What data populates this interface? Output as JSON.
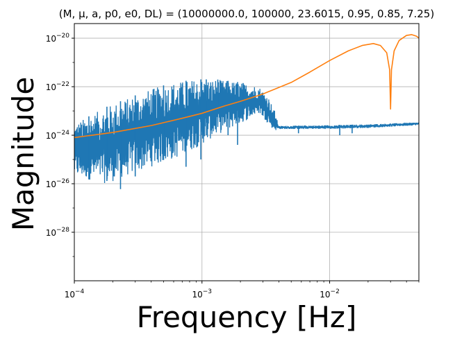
{
  "chart_data": {
    "type": "line",
    "title": "(M, μ, a, p0, e0, DL) = (10000000.0, 100000, 23.6015, 0.95, 0.85, 7.25)",
    "xlabel": "Frequency [Hz]",
    "ylabel": "Magnitude",
    "xscale": "log",
    "yscale": "log",
    "xlim": [
      0.0001,
      0.05
    ],
    "ylim": [
      1e-30,
      4e-20
    ],
    "grid": true,
    "x_ticks": [
      {
        "value": 0.0001,
        "base": "10",
        "exp": "−4"
      },
      {
        "value": 0.001,
        "base": "10",
        "exp": "−3"
      },
      {
        "value": 0.01,
        "base": "10",
        "exp": "−2"
      }
    ],
    "y_ticks": [
      {
        "value": 1e-28,
        "base": "10",
        "exp": "−28"
      },
      {
        "value": 1e-26,
        "base": "10",
        "exp": "−26"
      },
      {
        "value": 1e-24,
        "base": "10",
        "exp": "−24"
      },
      {
        "value": 1e-22,
        "base": "10",
        "exp": "−22"
      },
      {
        "value": 1e-20,
        "base": "10",
        "exp": "−20"
      }
    ],
    "series": [
      {
        "color": "#1f77b4",
        "style": "noisy-band",
        "points": [
          {
            "x": 0.0001,
            "lo": 2e-26,
            "hi": 3e-24
          },
          {
            "x": 0.00013,
            "lo": 1.5e-26,
            "hi": 6e-24
          },
          {
            "x": 0.00018,
            "lo": 1e-26,
            "hi": 1.5e-23
          },
          {
            "x": 0.00025,
            "lo": 2e-26,
            "hi": 3e-23
          },
          {
            "x": 0.0004,
            "lo": 5e-26,
            "hi": 8e-23
          },
          {
            "x": 0.0006,
            "lo": 1e-25,
            "hi": 1.5e-22
          },
          {
            "x": 0.0009,
            "lo": 3e-25,
            "hi": 2e-22
          },
          {
            "x": 0.0013,
            "lo": 1e-24,
            "hi": 2e-22
          },
          {
            "x": 0.002,
            "lo": 3e-24,
            "hi": 1.5e-22
          },
          {
            "x": 0.0028,
            "lo": 8e-24,
            "hi": 1e-22
          },
          {
            "x": 0.0033,
            "lo": 3e-24,
            "hi": 4e-23
          },
          {
            "x": 0.0037,
            "lo": 1.5e-24,
            "hi": 1e-23
          },
          {
            "x": 0.004,
            "lo": 1.8e-24,
            "hi": 2.4e-24
          },
          {
            "x": 0.01,
            "lo": 1.8e-24,
            "hi": 2.6e-24
          },
          {
            "x": 0.02,
            "lo": 2e-24,
            "hi": 2.8e-24
          },
          {
            "x": 0.05,
            "lo": 2.6e-24,
            "hi": 3.4e-24
          }
        ],
        "spikes": [
          {
            "x": 0.00013,
            "y": 1.5e-26
          },
          {
            "x": 0.00018,
            "y": 1.3e-26
          },
          {
            "x": 0.00023,
            "y": 6e-27
          },
          {
            "x": 0.0003,
            "y": 2e-26
          },
          {
            "x": 0.0005,
            "y": 1e-24
          },
          {
            "x": 0.00075,
            "y": 5e-26
          },
          {
            "x": 0.00098,
            "y": 1e-25
          },
          {
            "x": 0.00108,
            "y": 1e-24
          },
          {
            "x": 0.00133,
            "y": 1.2e-23
          },
          {
            "x": 0.0016,
            "y": 1e-24
          },
          {
            "x": 0.0019,
            "y": 4e-25
          },
          {
            "x": 0.0021,
            "y": 4e-24
          },
          {
            "x": 0.0037,
            "y": 3.5e-24
          },
          {
            "x": 0.0057,
            "y": 1.2e-24
          },
          {
            "x": 0.012,
            "y": 1e-24
          },
          {
            "x": 0.015,
            "y": 1.2e-24
          }
        ]
      },
      {
        "color": "#ff7f0e",
        "style": "smooth",
        "points": [
          {
            "x": 0.0001,
            "y": 8e-25
          },
          {
            "x": 0.0002,
            "y": 1.3e-24
          },
          {
            "x": 0.0004,
            "y": 2.5e-24
          },
          {
            "x": 0.0007,
            "y": 5e-24
          },
          {
            "x": 0.001,
            "y": 8e-24
          },
          {
            "x": 0.0015,
            "y": 1.6e-23
          },
          {
            "x": 0.002,
            "y": 2.5e-23
          },
          {
            "x": 0.003,
            "y": 5e-23
          },
          {
            "x": 0.005,
            "y": 1.5e-22
          },
          {
            "x": 0.007,
            "y": 4e-22
          },
          {
            "x": 0.01,
            "y": 1.2e-21
          },
          {
            "x": 0.014,
            "y": 3e-21
          },
          {
            "x": 0.018,
            "y": 5e-21
          },
          {
            "x": 0.022,
            "y": 6e-21
          },
          {
            "x": 0.025,
            "y": 5e-21
          },
          {
            "x": 0.028,
            "y": 2.5e-21
          },
          {
            "x": 0.0295,
            "y": 5e-22
          },
          {
            "x": 0.03,
            "y": 1.2e-23
          },
          {
            "x": 0.0305,
            "y": 5e-22
          },
          {
            "x": 0.032,
            "y": 3e-21
          },
          {
            "x": 0.035,
            "y": 8e-21
          },
          {
            "x": 0.04,
            "y": 1.3e-20
          },
          {
            "x": 0.044,
            "y": 1.4e-20
          },
          {
            "x": 0.048,
            "y": 1.2e-20
          },
          {
            "x": 0.05,
            "y": 1e-20
          }
        ]
      }
    ]
  }
}
